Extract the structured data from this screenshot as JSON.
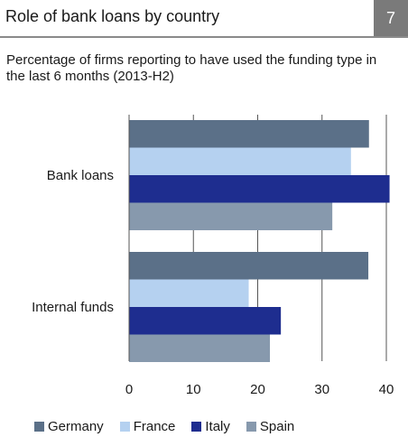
{
  "header": {
    "title": "Role of bank loans by country",
    "badge": "7"
  },
  "subtitle": "Percentage of firms reporting to have used the funding type in the last 6 months (2013-H2)",
  "chart_data": {
    "type": "bar",
    "orientation": "horizontal",
    "categories": [
      "Bank loans",
      "Internal funds"
    ],
    "series": [
      {
        "name": "Germany",
        "color": "#5b7088",
        "values": [
          37.3,
          37.2
        ]
      },
      {
        "name": "France",
        "color": "#b5d1f0",
        "values": [
          34.5,
          18.6
        ]
      },
      {
        "name": "Italy",
        "color": "#1e2d8f",
        "values": [
          40.5,
          23.6
        ]
      },
      {
        "name": "Spain",
        "color": "#8799ad",
        "values": [
          31.6,
          21.9
        ]
      }
    ],
    "xlim": [
      0,
      40
    ],
    "xticks": [
      "0",
      "10",
      "20",
      "30",
      "40"
    ],
    "grid": true,
    "legend": "bottom"
  }
}
